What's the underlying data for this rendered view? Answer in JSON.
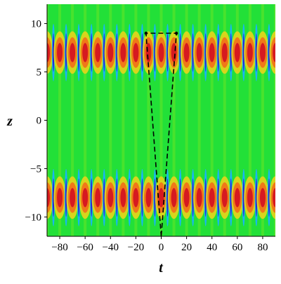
{
  "chart_data": {
    "type": "heatmap",
    "title": "",
    "xlabel": "t",
    "ylabel": "z",
    "xlim": [
      -90,
      90
    ],
    "ylim": [
      -12,
      12
    ],
    "x_ticks": [
      -80,
      -60,
      -40,
      -20,
      0,
      20,
      40,
      60,
      80
    ],
    "x_tick_labels": [
      "−80",
      "−60",
      "−40",
      "−20",
      "0",
      "20",
      "40",
      "60",
      "80"
    ],
    "y_ticks": [
      10,
      5,
      0,
      -5,
      -10
    ],
    "y_tick_labels": [
      "10",
      "5",
      "0",
      "−5",
      "−10"
    ],
    "colormap": [
      "#2b1fd0",
      "#19b5f2",
      "#22e038",
      "#8ee81a",
      "#f2d21a",
      "#f07818",
      "#d61a20"
    ],
    "background_color": "#22e038",
    "bands": [
      {
        "z_center": 7,
        "z_halfwidth": 2.2,
        "t_period": 10
      },
      {
        "z_center": -8,
        "z_halfwidth": 2.2,
        "t_period": 10
      }
    ],
    "annotation": {
      "style": "dashed",
      "color": "#000000",
      "points": [
        [
          0,
          -12
        ],
        [
          -12,
          9
        ],
        [
          12,
          9
        ],
        [
          0,
          -12
        ]
      ]
    }
  }
}
